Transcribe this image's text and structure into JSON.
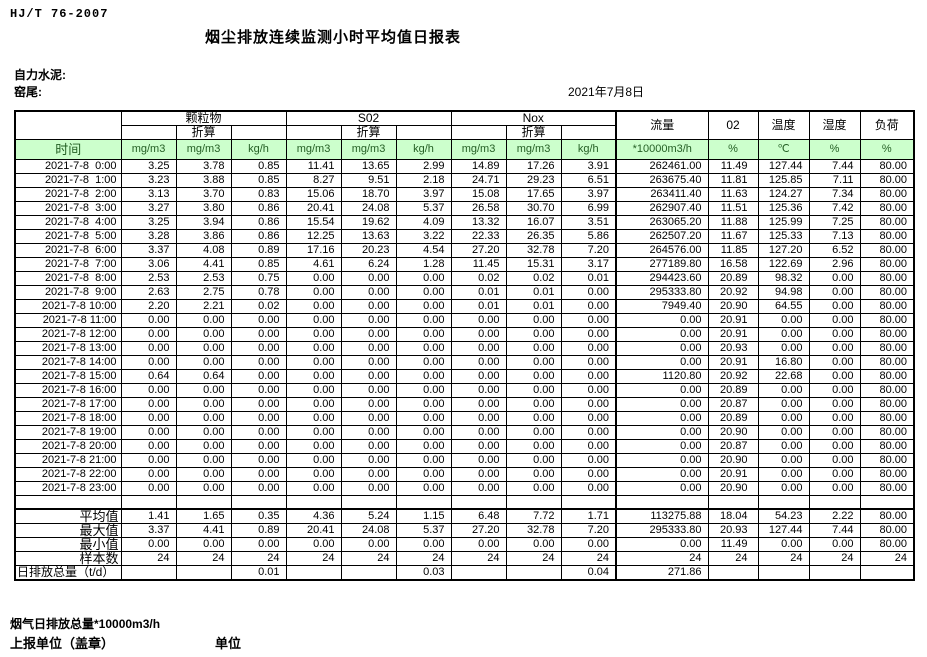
{
  "page": {
    "standard": "HJ/T  76-2007",
    "title": "烟尘排放连续监测小时平均值日报表",
    "company": "自力水泥:",
    "site": "窑尾:",
    "date": "2021年7月8日"
  },
  "colors": {
    "header_green": "#ccffcc",
    "header_green_text": "#245f24",
    "border": "#000000"
  },
  "table": {
    "time_header": "时间",
    "groups": [
      "颗粒物",
      "S02",
      "Nox"
    ],
    "converted_label": "折算",
    "flow_header": "流量",
    "o2_header": "02",
    "temp_header": "温度",
    "humidity_header": "湿度",
    "load_header": "负荷",
    "units": [
      "mg/m3",
      "mg/m3",
      "kg/h",
      "mg/m3",
      "mg/m3",
      "kg/h",
      "mg/m3",
      "mg/m3",
      "kg/h",
      "*10000m3/h",
      "%",
      "℃",
      "%",
      "%"
    ],
    "rows": [
      {
        "time": "2021-7-8  0:00",
        "cells": [
          "3.25",
          "3.78",
          "0.85",
          "11.41",
          "13.65",
          "2.99",
          "14.89",
          "17.26",
          "3.91",
          "262461.00",
          "11.49",
          "127.44",
          "7.44",
          "80.00"
        ]
      },
      {
        "time": "2021-7-8  1:00",
        "cells": [
          "3.23",
          "3.88",
          "0.85",
          "8.27",
          "9.51",
          "2.18",
          "24.71",
          "29.23",
          "6.51",
          "263675.40",
          "11.81",
          "125.85",
          "7.11",
          "80.00"
        ]
      },
      {
        "time": "2021-7-8  2:00",
        "cells": [
          "3.13",
          "3.70",
          "0.83",
          "15.06",
          "18.70",
          "3.97",
          "15.08",
          "17.65",
          "3.97",
          "263411.40",
          "11.63",
          "124.27",
          "7.34",
          "80.00"
        ]
      },
      {
        "time": "2021-7-8  3:00",
        "cells": [
          "3.27",
          "3.80",
          "0.86",
          "20.41",
          "24.08",
          "5.37",
          "26.58",
          "30.70",
          "6.99",
          "262907.40",
          "11.51",
          "125.36",
          "7.42",
          "80.00"
        ]
      },
      {
        "time": "2021-7-8  4:00",
        "cells": [
          "3.25",
          "3.94",
          "0.86",
          "15.54",
          "19.62",
          "4.09",
          "13.32",
          "16.07",
          "3.51",
          "263065.20",
          "11.88",
          "125.99",
          "7.25",
          "80.00"
        ]
      },
      {
        "time": "2021-7-8  5:00",
        "cells": [
          "3.28",
          "3.86",
          "0.86",
          "12.25",
          "13.63",
          "3.22",
          "22.33",
          "26.35",
          "5.86",
          "262507.20",
          "11.67",
          "125.33",
          "7.13",
          "80.00"
        ]
      },
      {
        "time": "2021-7-8  6:00",
        "cells": [
          "3.37",
          "4.08",
          "0.89",
          "17.16",
          "20.23",
          "4.54",
          "27.20",
          "32.78",
          "7.20",
          "264576.00",
          "11.85",
          "127.20",
          "6.52",
          "80.00"
        ]
      },
      {
        "time": "2021-7-8  7:00",
        "cells": [
          "3.06",
          "4.41",
          "0.85",
          "4.61",
          "6.24",
          "1.28",
          "11.45",
          "15.31",
          "3.17",
          "277189.80",
          "16.58",
          "122.69",
          "2.96",
          "80.00"
        ]
      },
      {
        "time": "2021-7-8  8:00",
        "cells": [
          "2.53",
          "2.53",
          "0.75",
          "0.00",
          "0.00",
          "0.00",
          "0.02",
          "0.02",
          "0.01",
          "294423.60",
          "20.89",
          "98.32",
          "0.00",
          "80.00"
        ]
      },
      {
        "time": "2021-7-8  9:00",
        "cells": [
          "2.63",
          "2.75",
          "0.78",
          "0.00",
          "0.00",
          "0.00",
          "0.01",
          "0.01",
          "0.00",
          "295333.80",
          "20.92",
          "94.98",
          "0.00",
          "80.00"
        ]
      },
      {
        "time": "2021-7-8 10:00",
        "cells": [
          "2.20",
          "2.21",
          "0.02",
          "0.00",
          "0.00",
          "0.00",
          "0.01",
          "0.01",
          "0.00",
          "7949.40",
          "20.90",
          "64.55",
          "0.00",
          "80.00"
        ]
      },
      {
        "time": "2021-7-8 11:00",
        "cells": [
          "0.00",
          "0.00",
          "0.00",
          "0.00",
          "0.00",
          "0.00",
          "0.00",
          "0.00",
          "0.00",
          "0.00",
          "20.91",
          "0.00",
          "0.00",
          "80.00"
        ]
      },
      {
        "time": "2021-7-8 12:00",
        "cells": [
          "0.00",
          "0.00",
          "0.00",
          "0.00",
          "0.00",
          "0.00",
          "0.00",
          "0.00",
          "0.00",
          "0.00",
          "20.91",
          "0.00",
          "0.00",
          "80.00"
        ]
      },
      {
        "time": "2021-7-8 13:00",
        "cells": [
          "0.00",
          "0.00",
          "0.00",
          "0.00",
          "0.00",
          "0.00",
          "0.00",
          "0.00",
          "0.00",
          "0.00",
          "20.93",
          "0.00",
          "0.00",
          "80.00"
        ]
      },
      {
        "time": "2021-7-8 14:00",
        "cells": [
          "0.00",
          "0.00",
          "0.00",
          "0.00",
          "0.00",
          "0.00",
          "0.00",
          "0.00",
          "0.00",
          "0.00",
          "20.91",
          "16.80",
          "0.00",
          "80.00"
        ]
      },
      {
        "time": "2021-7-8 15:00",
        "cells": [
          "0.64",
          "0.64",
          "0.00",
          "0.00",
          "0.00",
          "0.00",
          "0.00",
          "0.00",
          "0.00",
          "1120.80",
          "20.92",
          "22.68",
          "0.00",
          "80.00"
        ]
      },
      {
        "time": "2021-7-8 16:00",
        "cells": [
          "0.00",
          "0.00",
          "0.00",
          "0.00",
          "0.00",
          "0.00",
          "0.00",
          "0.00",
          "0.00",
          "0.00",
          "20.89",
          "0.00",
          "0.00",
          "80.00"
        ]
      },
      {
        "time": "2021-7-8 17:00",
        "cells": [
          "0.00",
          "0.00",
          "0.00",
          "0.00",
          "0.00",
          "0.00",
          "0.00",
          "0.00",
          "0.00",
          "0.00",
          "20.87",
          "0.00",
          "0.00",
          "80.00"
        ]
      },
      {
        "time": "2021-7-8 18:00",
        "cells": [
          "0.00",
          "0.00",
          "0.00",
          "0.00",
          "0.00",
          "0.00",
          "0.00",
          "0.00",
          "0.00",
          "0.00",
          "20.89",
          "0.00",
          "0.00",
          "80.00"
        ]
      },
      {
        "time": "2021-7-8 19:00",
        "cells": [
          "0.00",
          "0.00",
          "0.00",
          "0.00",
          "0.00",
          "0.00",
          "0.00",
          "0.00",
          "0.00",
          "0.00",
          "20.90",
          "0.00",
          "0.00",
          "80.00"
        ]
      },
      {
        "time": "2021-7-8 20:00",
        "cells": [
          "0.00",
          "0.00",
          "0.00",
          "0.00",
          "0.00",
          "0.00",
          "0.00",
          "0.00",
          "0.00",
          "0.00",
          "20.87",
          "0.00",
          "0.00",
          "80.00"
        ]
      },
      {
        "time": "2021-7-8 21:00",
        "cells": [
          "0.00",
          "0.00",
          "0.00",
          "0.00",
          "0.00",
          "0.00",
          "0.00",
          "0.00",
          "0.00",
          "0.00",
          "20.90",
          "0.00",
          "0.00",
          "80.00"
        ]
      },
      {
        "time": "2021-7-8 22:00",
        "cells": [
          "0.00",
          "0.00",
          "0.00",
          "0.00",
          "0.00",
          "0.00",
          "0.00",
          "0.00",
          "0.00",
          "0.00",
          "20.91",
          "0.00",
          "0.00",
          "80.00"
        ]
      },
      {
        "time": "2021-7-8 23:00",
        "cells": [
          "0.00",
          "0.00",
          "0.00",
          "0.00",
          "0.00",
          "0.00",
          "0.00",
          "0.00",
          "0.00",
          "0.00",
          "20.90",
          "0.00",
          "0.00",
          "80.00"
        ]
      }
    ],
    "summary": [
      {
        "label": "平均值",
        "label_align": "right",
        "cells": [
          "1.41",
          "1.65",
          "0.35",
          "4.36",
          "5.24",
          "1.15",
          "6.48",
          "7.72",
          "1.71",
          "113275.88",
          "18.04",
          "54.23",
          "2.22",
          "80.00"
        ]
      },
      {
        "label": "最大值",
        "label_align": "right",
        "cells": [
          "3.37",
          "4.41",
          "0.89",
          "20.41",
          "24.08",
          "5.37",
          "27.20",
          "32.78",
          "7.20",
          "295333.80",
          "20.93",
          "127.44",
          "7.44",
          "80.00"
        ]
      },
      {
        "label": "最小值",
        "label_align": "right",
        "cells": [
          "0.00",
          "0.00",
          "0.00",
          "0.00",
          "0.00",
          "0.00",
          "0.00",
          "0.00",
          "0.00",
          "0.00",
          "11.49",
          "0.00",
          "0.00",
          "80.00"
        ]
      },
      {
        "label": "样本数",
        "label_align": "right",
        "cells": [
          "24",
          "24",
          "24",
          "24",
          "24",
          "24",
          "24",
          "24",
          "24",
          "24",
          "24",
          "24",
          "24",
          "24"
        ]
      },
      {
        "label": "日排放总量（t/d）",
        "label_align": "left",
        "cells": [
          "",
          "",
          "0.01",
          "",
          "",
          "0.03",
          "",
          "",
          "0.04",
          "271.86",
          "",
          "",
          "",
          ""
        ]
      }
    ]
  },
  "footer": {
    "flue_total_label": "烟气日排放总量*10000m3/h",
    "report_unit_label": "上报单位（盖章）",
    "unit_label": "单位"
  }
}
